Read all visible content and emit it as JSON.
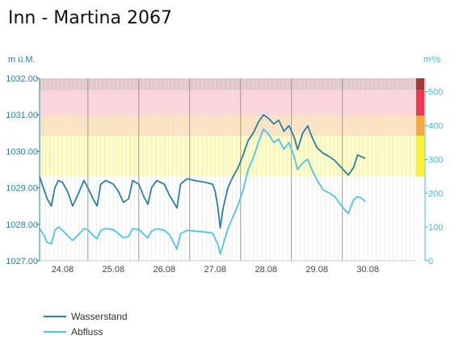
{
  "chart_data": {
    "type": "line",
    "title": "Inn - Martina 2067",
    "y_left_unit": "m ü.M.",
    "y_right_unit": "m³/s",
    "y_left_range": [
      1027.0,
      1032.0
    ],
    "y_right_range": [
      0,
      540
    ],
    "y_left_ticks": [
      "1032.00",
      "1031.00",
      "1030.00",
      "1029.00",
      "1028.00",
      "1027.00"
    ],
    "y_right_ticks": [
      "500",
      "400",
      "300",
      "200",
      "100",
      "0"
    ],
    "x_range_days": [
      23.55,
      30.95
    ],
    "x_ticks": [
      "24.08",
      "25.08",
      "26.08",
      "27.08",
      "28.08",
      "29.08",
      "30.08"
    ],
    "day_boundaries": [
      24.5,
      25.5,
      26.5,
      27.5,
      28.5,
      29.5
    ],
    "danger_bands": [
      {
        "from": 250,
        "to": 370,
        "color": "#fdfcc2"
      },
      {
        "from": 370,
        "to": 430,
        "color": "#fde3bf"
      },
      {
        "from": 430,
        "to": 505,
        "color": "#fdd4d9"
      },
      {
        "from": 505,
        "to": 540,
        "color": "#e3c7c9"
      }
    ],
    "danger_bars": [
      {
        "from": 250,
        "to": 370,
        "color": "#fbf235"
      },
      {
        "from": 370,
        "to": 430,
        "color": "#f8a93e"
      },
      {
        "from": 430,
        "to": 505,
        "color": "#ec3a54"
      },
      {
        "from": 505,
        "to": 540,
        "color": "#a43a36"
      }
    ],
    "series": [
      {
        "name": "Wasserstand",
        "color": "#2b7fa4",
        "axis": "left",
        "points": [
          [
            23.55,
            1029.3
          ],
          [
            23.6,
            1029.1
          ],
          [
            23.7,
            1028.7
          ],
          [
            23.78,
            1028.5
          ],
          [
            23.85,
            1029.0
          ],
          [
            23.92,
            1029.2
          ],
          [
            24.0,
            1029.15
          ],
          [
            24.1,
            1028.9
          ],
          [
            24.2,
            1028.5
          ],
          [
            24.3,
            1028.8
          ],
          [
            24.42,
            1029.2
          ],
          [
            24.5,
            1029.0
          ],
          [
            24.6,
            1028.7
          ],
          [
            24.68,
            1028.5
          ],
          [
            24.75,
            1029.1
          ],
          [
            24.85,
            1029.2
          ],
          [
            25.0,
            1029.1
          ],
          [
            25.1,
            1028.9
          ],
          [
            25.2,
            1028.6
          ],
          [
            25.3,
            1028.7
          ],
          [
            25.38,
            1029.2
          ],
          [
            25.5,
            1029.1
          ],
          [
            25.6,
            1028.75
          ],
          [
            25.68,
            1028.55
          ],
          [
            25.75,
            1029.0
          ],
          [
            25.85,
            1029.2
          ],
          [
            26.0,
            1029.1
          ],
          [
            26.1,
            1028.8
          ],
          [
            26.25,
            1028.45
          ],
          [
            26.32,
            1029.1
          ],
          [
            26.45,
            1029.25
          ],
          [
            26.6,
            1029.2
          ],
          [
            26.8,
            1029.15
          ],
          [
            26.95,
            1029.1
          ],
          [
            27.0,
            1028.9
          ],
          [
            27.05,
            1028.5
          ],
          [
            27.1,
            1027.9
          ],
          [
            27.15,
            1028.4
          ],
          [
            27.25,
            1029.0
          ],
          [
            27.35,
            1029.3
          ],
          [
            27.45,
            1029.55
          ],
          [
            27.55,
            1029.9
          ],
          [
            27.65,
            1030.3
          ],
          [
            27.75,
            1030.5
          ],
          [
            27.85,
            1030.8
          ],
          [
            27.95,
            1031.0
          ],
          [
            28.05,
            1030.9
          ],
          [
            28.15,
            1030.75
          ],
          [
            28.25,
            1030.85
          ],
          [
            28.35,
            1030.55
          ],
          [
            28.45,
            1030.7
          ],
          [
            28.55,
            1030.4
          ],
          [
            28.62,
            1030.05
          ],
          [
            28.72,
            1030.5
          ],
          [
            28.82,
            1030.7
          ],
          [
            28.9,
            1030.4
          ],
          [
            29.0,
            1030.1
          ],
          [
            29.12,
            1029.95
          ],
          [
            29.25,
            1029.85
          ],
          [
            29.35,
            1029.75
          ],
          [
            29.45,
            1029.6
          ],
          [
            29.55,
            1029.45
          ],
          [
            29.62,
            1029.35
          ],
          [
            29.72,
            1029.55
          ],
          [
            29.8,
            1029.9
          ],
          [
            29.88,
            1029.85
          ],
          [
            29.95,
            1029.8
          ]
        ]
      },
      {
        "name": "Abfluss",
        "color": "#4fc3ef",
        "axis": "right",
        "points": [
          [
            23.55,
            95
          ],
          [
            23.6,
            85
          ],
          [
            23.7,
            55
          ],
          [
            23.78,
            50
          ],
          [
            23.85,
            90
          ],
          [
            23.92,
            100
          ],
          [
            24.0,
            90
          ],
          [
            24.1,
            75
          ],
          [
            24.2,
            60
          ],
          [
            24.3,
            75
          ],
          [
            24.42,
            95
          ],
          [
            24.5,
            92
          ],
          [
            24.6,
            75
          ],
          [
            24.68,
            65
          ],
          [
            24.75,
            90
          ],
          [
            24.85,
            95
          ],
          [
            25.0,
            92
          ],
          [
            25.1,
            80
          ],
          [
            25.2,
            68
          ],
          [
            25.3,
            72
          ],
          [
            25.38,
            95
          ],
          [
            25.5,
            93
          ],
          [
            25.6,
            78
          ],
          [
            25.68,
            68
          ],
          [
            25.75,
            88
          ],
          [
            25.85,
            95
          ],
          [
            26.0,
            90
          ],
          [
            26.1,
            78
          ],
          [
            26.25,
            35
          ],
          [
            26.32,
            80
          ],
          [
            26.45,
            90
          ],
          [
            26.6,
            88
          ],
          [
            26.8,
            85
          ],
          [
            26.95,
            82
          ],
          [
            27.0,
            65
          ],
          [
            27.05,
            50
          ],
          [
            27.1,
            20
          ],
          [
            27.15,
            45
          ],
          [
            27.25,
            95
          ],
          [
            27.35,
            130
          ],
          [
            27.45,
            165
          ],
          [
            27.55,
            210
          ],
          [
            27.65,
            270
          ],
          [
            27.75,
            305
          ],
          [
            27.85,
            350
          ],
          [
            27.95,
            390
          ],
          [
            28.05,
            375
          ],
          [
            28.15,
            350
          ],
          [
            28.25,
            360
          ],
          [
            28.35,
            330
          ],
          [
            28.45,
            350
          ],
          [
            28.55,
            310
          ],
          [
            28.62,
            270
          ],
          [
            28.72,
            290
          ],
          [
            28.82,
            300
          ],
          [
            28.9,
            270
          ],
          [
            29.0,
            240
          ],
          [
            29.12,
            210
          ],
          [
            29.25,
            200
          ],
          [
            29.35,
            190
          ],
          [
            29.45,
            170
          ],
          [
            29.55,
            150
          ],
          [
            29.62,
            140
          ],
          [
            29.72,
            180
          ],
          [
            29.8,
            190
          ],
          [
            29.88,
            185
          ],
          [
            29.95,
            175
          ]
        ]
      }
    ]
  }
}
